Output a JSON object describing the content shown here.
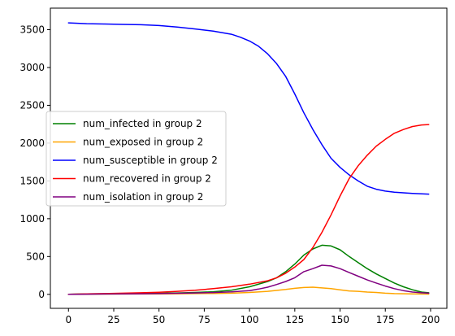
{
  "chart_data": {
    "type": "line",
    "xlim": [
      -10,
      209
    ],
    "ylim": [
      -185,
      3785
    ],
    "x_ticks": [
      0,
      25,
      50,
      75,
      100,
      125,
      150,
      175,
      200
    ],
    "y_ticks": [
      0,
      500,
      1000,
      1500,
      2000,
      2500,
      3000,
      3500
    ],
    "grid": false,
    "legend_placement": "center-left",
    "series": [
      {
        "name": "num_infected in group 2",
        "color": "#008000",
        "x": [
          0,
          10,
          20,
          30,
          40,
          50,
          60,
          70,
          80,
          90,
          100,
          110,
          115,
          120,
          125,
          130,
          135,
          140,
          145,
          150,
          155,
          160,
          165,
          170,
          175,
          180,
          185,
          190,
          195,
          199
        ],
        "y": [
          0,
          5,
          8,
          10,
          12,
          14,
          18,
          25,
          35,
          55,
          100,
          170,
          220,
          300,
          400,
          520,
          600,
          650,
          640,
          590,
          500,
          420,
          340,
          270,
          210,
          150,
          100,
          60,
          30,
          20
        ]
      },
      {
        "name": "num_exposed in group 2",
        "color": "#ffa500",
        "x": [
          0,
          10,
          20,
          30,
          40,
          50,
          60,
          70,
          80,
          90,
          100,
          110,
          120,
          125,
          130,
          135,
          140,
          145,
          150,
          155,
          160,
          165,
          170,
          175,
          180,
          190,
          199
        ],
        "y": [
          0,
          2,
          3,
          4,
          5,
          6,
          8,
          10,
          12,
          15,
          25,
          40,
          65,
          80,
          90,
          95,
          85,
          75,
          60,
          45,
          40,
          30,
          25,
          15,
          10,
          5,
          3
        ]
      },
      {
        "name": "num_susceptible in group 2",
        "color": "#0000ff",
        "x": [
          0,
          10,
          20,
          30,
          40,
          50,
          60,
          70,
          80,
          90,
          95,
          100,
          105,
          110,
          115,
          120,
          125,
          130,
          135,
          140,
          145,
          150,
          155,
          160,
          165,
          170,
          175,
          180,
          190,
          199
        ],
        "y": [
          3590,
          3580,
          3575,
          3570,
          3565,
          3555,
          3535,
          3510,
          3480,
          3440,
          3400,
          3350,
          3280,
          3180,
          3050,
          2880,
          2650,
          2400,
          2180,
          1980,
          1800,
          1680,
          1580,
          1500,
          1430,
          1390,
          1365,
          1350,
          1335,
          1325
        ]
      },
      {
        "name": "num_recovered in group 2",
        "color": "#ff0000",
        "x": [
          0,
          10,
          20,
          30,
          40,
          50,
          60,
          70,
          80,
          90,
          100,
          110,
          115,
          120,
          125,
          130,
          135,
          140,
          145,
          150,
          155,
          160,
          165,
          170,
          175,
          180,
          185,
          190,
          195,
          199
        ],
        "y": [
          0,
          5,
          10,
          15,
          20,
          28,
          40,
          55,
          75,
          100,
          135,
          180,
          220,
          280,
          360,
          460,
          620,
          820,
          1050,
          1300,
          1530,
          1700,
          1840,
          1960,
          2050,
          2130,
          2180,
          2220,
          2240,
          2245
        ]
      },
      {
        "name": "num_isolation in group 2",
        "color": "#800080",
        "x": [
          0,
          10,
          20,
          30,
          40,
          50,
          60,
          70,
          80,
          90,
          100,
          105,
          110,
          115,
          120,
          125,
          130,
          135,
          140,
          145,
          150,
          155,
          160,
          165,
          170,
          175,
          180,
          185,
          190,
          195,
          199
        ],
        "y": [
          0,
          2,
          4,
          6,
          8,
          10,
          14,
          18,
          24,
          32,
          50,
          70,
          95,
          130,
          170,
          220,
          300,
          340,
          385,
          375,
          340,
          290,
          240,
          190,
          150,
          110,
          75,
          50,
          30,
          20,
          15
        ]
      }
    ]
  }
}
